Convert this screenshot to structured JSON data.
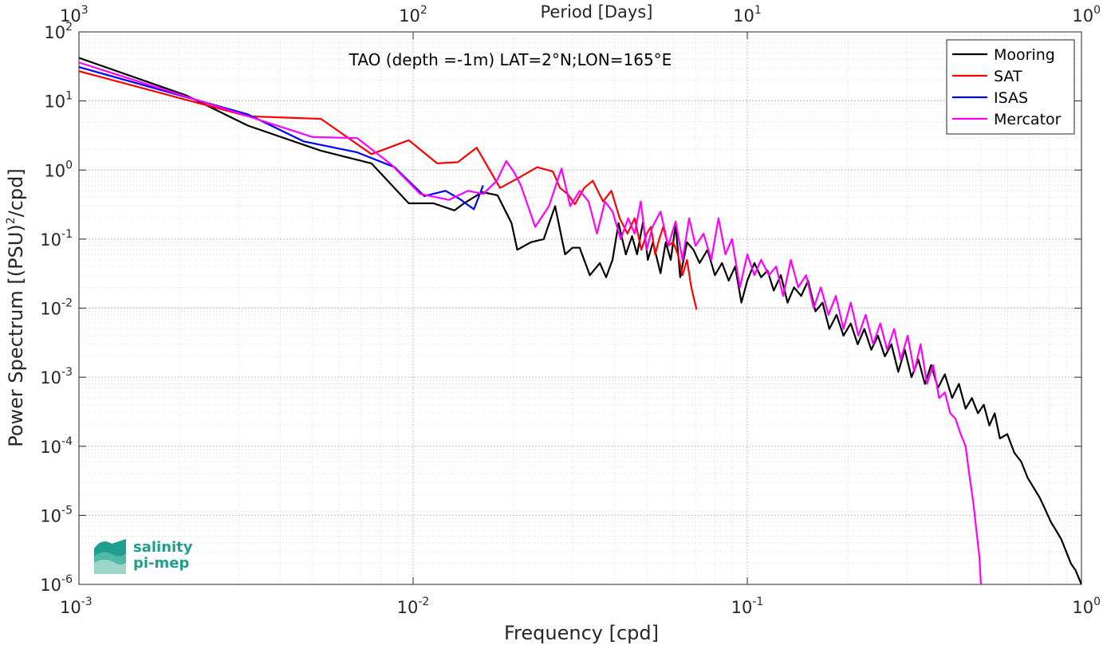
{
  "chart_data": {
    "type": "line",
    "title": "TAO (depth =-1m) LAT=2°N;LON=165°E",
    "xlabel": "Frequency [cpd]",
    "ylabel_parts": [
      "Power Spectrum [(PSU)",
      "2",
      "/cpd]"
    ],
    "top_xlabel": "Period [Days]",
    "x_scale": "log",
    "y_scale": "log",
    "xlim": [
      0.001,
      1
    ],
    "ylim": [
      1e-06,
      100
    ],
    "top_xlim": [
      1000,
      1
    ],
    "grid": true,
    "minor_grid": true,
    "legend_position": "top-right",
    "x_ticks": [
      {
        "value": 0.001,
        "base": "10",
        "exp": "-3"
      },
      {
        "value": 0.01,
        "base": "10",
        "exp": "-2"
      },
      {
        "value": 0.1,
        "base": "10",
        "exp": "-1"
      },
      {
        "value": 1,
        "base": "10",
        "exp": "0"
      }
    ],
    "top_ticks": [
      {
        "value": 1000,
        "base": "10",
        "exp": "3"
      },
      {
        "value": 100,
        "base": "10",
        "exp": "2"
      },
      {
        "value": 10,
        "base": "10",
        "exp": "1"
      },
      {
        "value": 1,
        "base": "10",
        "exp": "0"
      }
    ],
    "y_ticks": [
      {
        "value": 100,
        "base": "10",
        "exp": "2"
      },
      {
        "value": 10,
        "base": "10",
        "exp": "1"
      },
      {
        "value": 1,
        "base": "10",
        "exp": "0"
      },
      {
        "value": 0.1,
        "base": "10",
        "exp": "-1"
      },
      {
        "value": 0.01,
        "base": "10",
        "exp": "-2"
      },
      {
        "value": 0.001,
        "base": "10",
        "exp": "-3"
      },
      {
        "value": 0.0001,
        "base": "10",
        "exp": "-4"
      },
      {
        "value": 1e-05,
        "base": "10",
        "exp": "-5"
      },
      {
        "value": 1e-06,
        "base": "10",
        "exp": "-6"
      }
    ],
    "series": [
      {
        "name": "Mooring",
        "color": "#000000",
        "x": [
          0.001,
          0.0021,
          0.0032,
          0.0053,
          0.0075,
          0.0097,
          0.0115,
          0.0133,
          0.0142,
          0.0161,
          0.0179,
          0.0197,
          0.0205,
          0.0225,
          0.0246,
          0.0266,
          0.0285,
          0.03,
          0.0315,
          0.0338,
          0.0362,
          0.0378,
          0.0395,
          0.0412,
          0.0433,
          0.0452,
          0.0468,
          0.0488,
          0.0504,
          0.0522,
          0.055,
          0.057,
          0.059,
          0.061,
          0.063,
          0.066,
          0.069,
          0.072,
          0.076,
          0.08,
          0.084,
          0.088,
          0.092,
          0.096,
          0.1,
          0.105,
          0.11,
          0.115,
          0.12,
          0.126,
          0.132,
          0.138,
          0.145,
          0.152,
          0.16,
          0.168,
          0.176,
          0.185,
          0.194,
          0.204,
          0.214,
          0.224,
          0.235,
          0.246,
          0.258,
          0.27,
          0.283,
          0.296,
          0.31,
          0.325,
          0.34,
          0.355,
          0.372,
          0.39,
          0.41,
          0.43,
          0.45,
          0.47,
          0.49,
          0.51,
          0.53,
          0.55,
          0.57,
          0.6,
          0.63,
          0.66,
          0.69,
          0.72,
          0.75,
          0.78,
          0.81,
          0.84,
          0.87,
          0.9,
          0.93,
          0.96,
          1.0
        ],
        "y": [
          42,
          12,
          4.4,
          1.9,
          1.25,
          0.33,
          0.33,
          0.26,
          0.33,
          0.48,
          0.43,
          0.17,
          0.07,
          0.09,
          0.1,
          0.3,
          0.06,
          0.075,
          0.075,
          0.03,
          0.045,
          0.028,
          0.05,
          0.17,
          0.06,
          0.11,
          0.06,
          0.18,
          0.05,
          0.09,
          0.032,
          0.09,
          0.05,
          0.16,
          0.028,
          0.09,
          0.07,
          0.045,
          0.07,
          0.03,
          0.045,
          0.025,
          0.04,
          0.012,
          0.025,
          0.045,
          0.028,
          0.035,
          0.018,
          0.03,
          0.012,
          0.02,
          0.015,
          0.025,
          0.009,
          0.012,
          0.005,
          0.008,
          0.004,
          0.006,
          0.003,
          0.005,
          0.0025,
          0.004,
          0.002,
          0.003,
          0.0012,
          0.0025,
          0.001,
          0.0018,
          0.0008,
          0.0015,
          0.0007,
          0.0011,
          0.0005,
          0.0008,
          0.00035,
          0.0005,
          0.0003,
          0.0004,
          0.0002,
          0.0003,
          0.00013,
          0.00015,
          8e-05,
          6e-05,
          3.5e-05,
          2.5e-05,
          1.8e-05,
          1.2e-05,
          8e-06,
          6e-06,
          4.5e-06,
          3e-06,
          2e-06,
          1.6e-06,
          1e-06
        ]
      },
      {
        "name": "SAT",
        "color": "#ff0000",
        "x": [
          0.001,
          0.0032,
          0.0053,
          0.0075,
          0.0097,
          0.0118,
          0.0136,
          0.0155,
          0.0182,
          0.021,
          0.0235,
          0.0262,
          0.0275,
          0.029,
          0.0305,
          0.0325,
          0.0345,
          0.037,
          0.0392,
          0.0415,
          0.0438,
          0.046,
          0.0482,
          0.05,
          0.0515,
          0.053,
          0.0545,
          0.056,
          0.058,
          0.06,
          0.062,
          0.064,
          0.066,
          0.068,
          0.0705
        ],
        "y": [
          27,
          6.0,
          5.5,
          1.7,
          2.7,
          1.25,
          1.3,
          2.1,
          0.55,
          0.8,
          1.1,
          0.95,
          0.55,
          0.45,
          0.32,
          0.55,
          0.7,
          0.35,
          0.5,
          0.2,
          0.12,
          0.2,
          0.07,
          0.12,
          0.15,
          0.06,
          0.1,
          0.15,
          0.08,
          0.09,
          0.06,
          0.03,
          0.05,
          0.02,
          0.0095
        ]
      },
      {
        "name": "ISAS",
        "color": "#0000ff",
        "x": [
          0.001,
          0.0032,
          0.0047,
          0.0068,
          0.0088,
          0.0108,
          0.0125,
          0.0138,
          0.0152,
          0.0162
        ],
        "y": [
          31,
          6.4,
          2.6,
          1.8,
          1.1,
          0.42,
          0.5,
          0.38,
          0.27,
          0.6
        ]
      },
      {
        "name": "Mercator",
        "color": "#ff00ff",
        "x": [
          0.001,
          0.0029,
          0.005,
          0.0068,
          0.0086,
          0.0105,
          0.0128,
          0.0146,
          0.0162,
          0.0178,
          0.019,
          0.02,
          0.021,
          0.0232,
          0.0255,
          0.0278,
          0.0295,
          0.0315,
          0.0335,
          0.0355,
          0.0375,
          0.0395,
          0.0418,
          0.044,
          0.046,
          0.048,
          0.05,
          0.052,
          0.055,
          0.058,
          0.061,
          0.064,
          0.067,
          0.07,
          0.074,
          0.078,
          0.082,
          0.086,
          0.09,
          0.095,
          0.1,
          0.105,
          0.11,
          0.116,
          0.122,
          0.128,
          0.135,
          0.142,
          0.15,
          0.158,
          0.166,
          0.175,
          0.184,
          0.194,
          0.204,
          0.215,
          0.226,
          0.238,
          0.25,
          0.262,
          0.275,
          0.288,
          0.302,
          0.316,
          0.33,
          0.345,
          0.36,
          0.375,
          0.39,
          0.405,
          0.42,
          0.435,
          0.45,
          0.465,
          0.475,
          0.485,
          0.495,
          0.5
        ],
        "y": [
          36,
          7.0,
          3.0,
          2.9,
          1.2,
          0.45,
          0.37,
          0.5,
          0.45,
          0.7,
          1.35,
          0.95,
          0.6,
          0.15,
          0.3,
          1.05,
          0.3,
          0.5,
          0.35,
          0.12,
          0.35,
          0.25,
          0.1,
          0.2,
          0.12,
          0.35,
          0.07,
          0.15,
          0.25,
          0.08,
          0.18,
          0.05,
          0.2,
          0.08,
          0.12,
          0.05,
          0.2,
          0.06,
          0.1,
          0.02,
          0.06,
          0.03,
          0.05,
          0.03,
          0.04,
          0.015,
          0.05,
          0.02,
          0.03,
          0.01,
          0.02,
          0.008,
          0.015,
          0.005,
          0.012,
          0.004,
          0.008,
          0.003,
          0.006,
          0.0025,
          0.005,
          0.0018,
          0.004,
          0.0012,
          0.003,
          0.0008,
          0.0015,
          0.0005,
          0.0006,
          0.0003,
          0.00025,
          0.00015,
          0.0001,
          3e-05,
          1.5e-05,
          6e-06,
          2.5e-06,
          1e-06
        ]
      }
    ]
  },
  "logo": {
    "line1": "salinity",
    "line2": "pi-mep"
  }
}
